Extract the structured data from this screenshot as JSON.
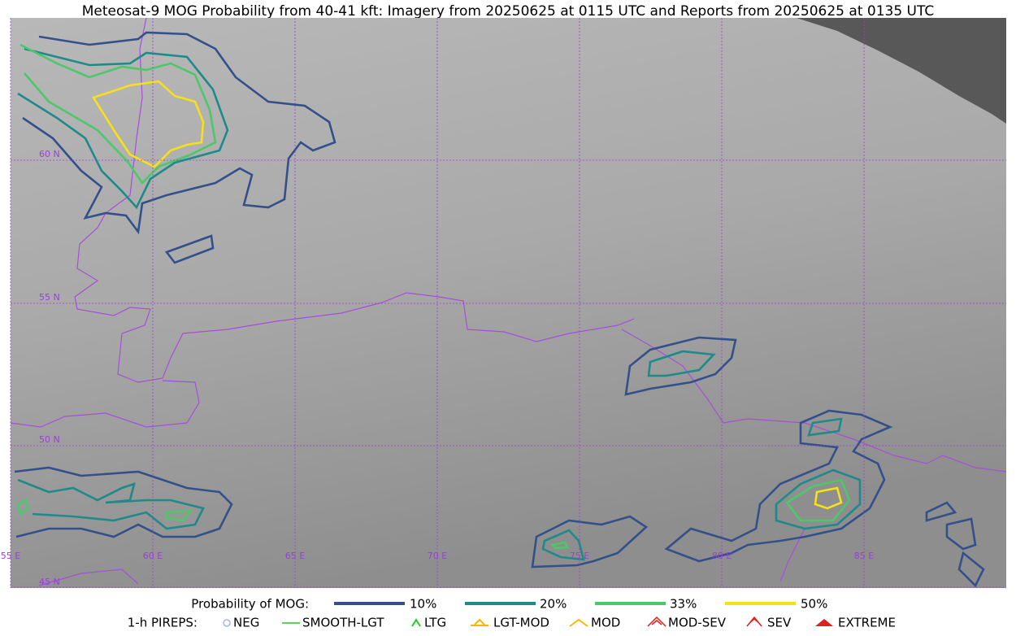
{
  "header": {
    "title": "Meteosat-9 MOG Probability from 40-41 kft: Imagery from 20250625 at 0115 UTC and Reports from 20250625 at 0135 UTC"
  },
  "map": {
    "lat_labels": [
      "60 N",
      "55 N",
      "50 N",
      "45 N"
    ],
    "lon_labels": [
      "55 E",
      "60 E",
      "65 E",
      "70 E",
      "75 E",
      "80 E",
      "85 E"
    ]
  },
  "legend": {
    "probability_label": "Probability of MOG:",
    "probability_items": [
      {
        "label": "10%",
        "color": "#34508a"
      },
      {
        "label": "20%",
        "color": "#1f8a8a"
      },
      {
        "label": "33%",
        "color": "#4cc86a"
      },
      {
        "label": "50%",
        "color": "#f5e01a"
      }
    ],
    "pireps_label": "1-h PIREPS:",
    "pireps_items": [
      "NEG",
      "SMOOTH-LGT",
      "LTG",
      "LGT-MOD",
      "MOD",
      "MOD-SEV",
      "SEV",
      "EXTREME"
    ]
  }
}
